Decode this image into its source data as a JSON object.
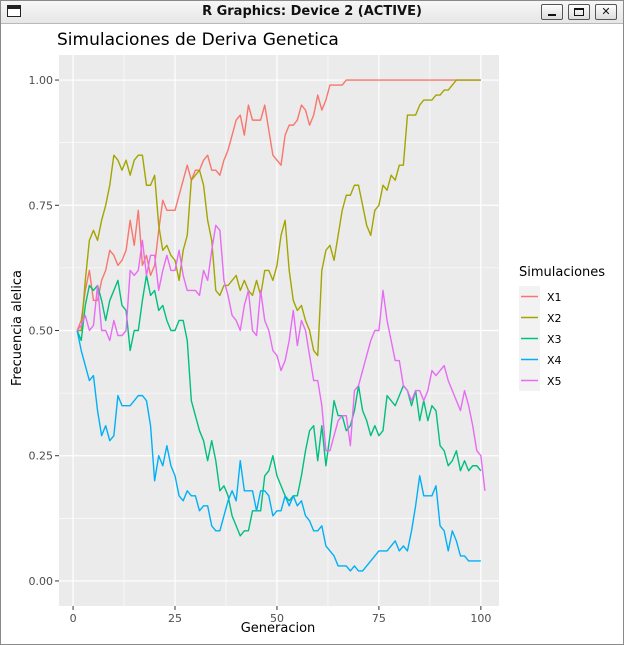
{
  "window": {
    "title": "R Graphics: Device 2 (ACTIVE)",
    "icons": [
      "app-icon",
      "minimize-icon",
      "maximize-icon",
      "close-icon"
    ],
    "close_glyph": "✕"
  },
  "chart_data": {
    "type": "line",
    "title": "Simulaciones de Deriva Genetica",
    "xlabel": "Generacion",
    "ylabel": "Frecuencia alelica",
    "xlim": [
      0,
      100
    ],
    "ylim": [
      0,
      1
    ],
    "x_ticks": [
      0,
      25,
      50,
      75,
      100
    ],
    "x_tick_labels": [
      "0",
      "25",
      "50",
      "75",
      "100"
    ],
    "y_ticks": [
      0,
      0.25,
      0.5,
      0.75,
      1
    ],
    "y_tick_labels": [
      "0.00",
      "0.25",
      "0.50",
      "0.75",
      "1.00"
    ],
    "grid": true,
    "legend": {
      "title": "Simulaciones",
      "position": "right"
    },
    "x_start": 1,
    "series": [
      {
        "name": "X1",
        "color": "#F8766D",
        "values": [
          0.5,
          0.52,
          0.58,
          0.62,
          0.56,
          0.56,
          0.6,
          0.62,
          0.66,
          0.65,
          0.63,
          0.64,
          0.66,
          0.72,
          0.67,
          0.74,
          0.63,
          0.65,
          0.61,
          0.63,
          0.7,
          0.76,
          0.74,
          0.74,
          0.74,
          0.77,
          0.8,
          0.83,
          0.8,
          0.82,
          0.82,
          0.84,
          0.85,
          0.82,
          0.82,
          0.81,
          0.84,
          0.86,
          0.89,
          0.92,
          0.93,
          0.89,
          0.95,
          0.92,
          0.92,
          0.92,
          0.95,
          0.9,
          0.85,
          0.84,
          0.83,
          0.89,
          0.91,
          0.91,
          0.92,
          0.95,
          0.94,
          0.91,
          0.93,
          0.97,
          0.94,
          0.96,
          0.99,
          0.99,
          0.99,
          0.99,
          1.0,
          1.0,
          1.0,
          1.0,
          1.0,
          1.0,
          1.0,
          1.0,
          1.0,
          1.0,
          1.0,
          1.0,
          1.0,
          1.0,
          1.0,
          1.0,
          1.0,
          1.0,
          1.0,
          1.0,
          1.0,
          1.0,
          1.0,
          1.0,
          1.0,
          1.0,
          1.0,
          1.0,
          1.0,
          1.0,
          1.0,
          1.0,
          1.0,
          1.0
        ]
      },
      {
        "name": "X2",
        "color": "#A3A500",
        "values": [
          0.5,
          0.5,
          0.6,
          0.68,
          0.7,
          0.68,
          0.72,
          0.75,
          0.79,
          0.85,
          0.84,
          0.82,
          0.84,
          0.81,
          0.84,
          0.85,
          0.85,
          0.79,
          0.79,
          0.81,
          0.71,
          0.66,
          0.67,
          0.65,
          0.64,
          0.6,
          0.66,
          0.69,
          0.8,
          0.81,
          0.82,
          0.79,
          0.72,
          0.68,
          0.58,
          0.57,
          0.59,
          0.59,
          0.6,
          0.61,
          0.58,
          0.6,
          0.58,
          0.57,
          0.6,
          0.57,
          0.62,
          0.62,
          0.6,
          0.63,
          0.69,
          0.72,
          0.62,
          0.56,
          0.54,
          0.55,
          0.52,
          0.5,
          0.46,
          0.45,
          0.62,
          0.66,
          0.67,
          0.64,
          0.69,
          0.74,
          0.77,
          0.77,
          0.79,
          0.79,
          0.75,
          0.71,
          0.69,
          0.74,
          0.75,
          0.79,
          0.78,
          0.81,
          0.8,
          0.83,
          0.83,
          0.93,
          0.93,
          0.93,
          0.95,
          0.96,
          0.96,
          0.96,
          0.97,
          0.97,
          0.98,
          0.98,
          0.99,
          1.0,
          1.0,
          1.0,
          1.0,
          1.0,
          1.0,
          1.0
        ]
      },
      {
        "name": "X3",
        "color": "#00BF7D",
        "values": [
          0.5,
          0.48,
          0.55,
          0.59,
          0.58,
          0.59,
          0.56,
          0.52,
          0.56,
          0.58,
          0.6,
          0.55,
          0.54,
          0.46,
          0.5,
          0.5,
          0.56,
          0.61,
          0.57,
          0.58,
          0.54,
          0.55,
          0.52,
          0.5,
          0.5,
          0.52,
          0.52,
          0.48,
          0.36,
          0.33,
          0.3,
          0.28,
          0.24,
          0.28,
          0.24,
          0.18,
          0.19,
          0.17,
          0.13,
          0.11,
          0.09,
          0.1,
          0.1,
          0.14,
          0.14,
          0.14,
          0.21,
          0.22,
          0.25,
          0.21,
          0.19,
          0.17,
          0.16,
          0.17,
          0.17,
          0.21,
          0.26,
          0.3,
          0.31,
          0.24,
          0.31,
          0.23,
          0.29,
          0.36,
          0.33,
          0.33,
          0.3,
          0.31,
          0.34,
          0.39,
          0.34,
          0.32,
          0.29,
          0.31,
          0.29,
          0.3,
          0.37,
          0.36,
          0.35,
          0.37,
          0.39,
          0.38,
          0.35,
          0.38,
          0.32,
          0.36,
          0.32,
          0.35,
          0.34,
          0.27,
          0.26,
          0.23,
          0.24,
          0.26,
          0.22,
          0.24,
          0.22,
          0.23,
          0.23,
          0.22
        ]
      },
      {
        "name": "X4",
        "color": "#00B0F6",
        "values": [
          0.5,
          0.46,
          0.43,
          0.4,
          0.41,
          0.34,
          0.29,
          0.31,
          0.28,
          0.29,
          0.37,
          0.35,
          0.35,
          0.35,
          0.36,
          0.37,
          0.37,
          0.36,
          0.31,
          0.2,
          0.25,
          0.23,
          0.27,
          0.23,
          0.21,
          0.17,
          0.16,
          0.18,
          0.17,
          0.17,
          0.14,
          0.15,
          0.15,
          0.11,
          0.1,
          0.1,
          0.13,
          0.16,
          0.18,
          0.16,
          0.24,
          0.18,
          0.18,
          0.18,
          0.14,
          0.18,
          0.18,
          0.17,
          0.13,
          0.14,
          0.14,
          0.17,
          0.15,
          0.17,
          0.15,
          0.16,
          0.13,
          0.12,
          0.1,
          0.1,
          0.11,
          0.07,
          0.06,
          0.05,
          0.03,
          0.03,
          0.03,
          0.02,
          0.03,
          0.02,
          0.02,
          0.03,
          0.04,
          0.05,
          0.06,
          0.06,
          0.06,
          0.07,
          0.08,
          0.06,
          0.07,
          0.06,
          0.1,
          0.15,
          0.21,
          0.17,
          0.17,
          0.17,
          0.19,
          0.11,
          0.1,
          0.06,
          0.1,
          0.08,
          0.05,
          0.05,
          0.04,
          0.04,
          0.04,
          0.04
        ]
      },
      {
        "name": "X5",
        "color": "#E76BF3",
        "values": [
          0.5,
          0.51,
          0.53,
          0.5,
          0.51,
          0.59,
          0.5,
          0.5,
          0.48,
          0.52,
          0.49,
          0.49,
          0.5,
          0.62,
          0.61,
          0.62,
          0.68,
          0.61,
          0.65,
          0.65,
          0.58,
          0.62,
          0.65,
          0.62,
          0.62,
          0.66,
          0.61,
          0.58,
          0.58,
          0.58,
          0.57,
          0.62,
          0.6,
          0.66,
          0.71,
          0.7,
          0.6,
          0.57,
          0.53,
          0.52,
          0.5,
          0.55,
          0.58,
          0.5,
          0.49,
          0.58,
          0.52,
          0.5,
          0.46,
          0.45,
          0.42,
          0.44,
          0.48,
          0.54,
          0.47,
          0.52,
          0.5,
          0.45,
          0.4,
          0.4,
          0.35,
          0.26,
          0.26,
          0.29,
          0.32,
          0.33,
          0.33,
          0.27,
          0.38,
          0.39,
          0.42,
          0.45,
          0.48,
          0.5,
          0.5,
          0.58,
          0.52,
          0.48,
          0.44,
          0.44,
          0.39,
          0.38,
          0.36,
          0.38,
          0.38,
          0.36,
          0.38,
          0.42,
          0.41,
          0.42,
          0.43,
          0.4,
          0.38,
          0.36,
          0.34,
          0.38,
          0.35,
          0.31,
          0.26,
          0.25,
          0.18
        ]
      }
    ]
  }
}
